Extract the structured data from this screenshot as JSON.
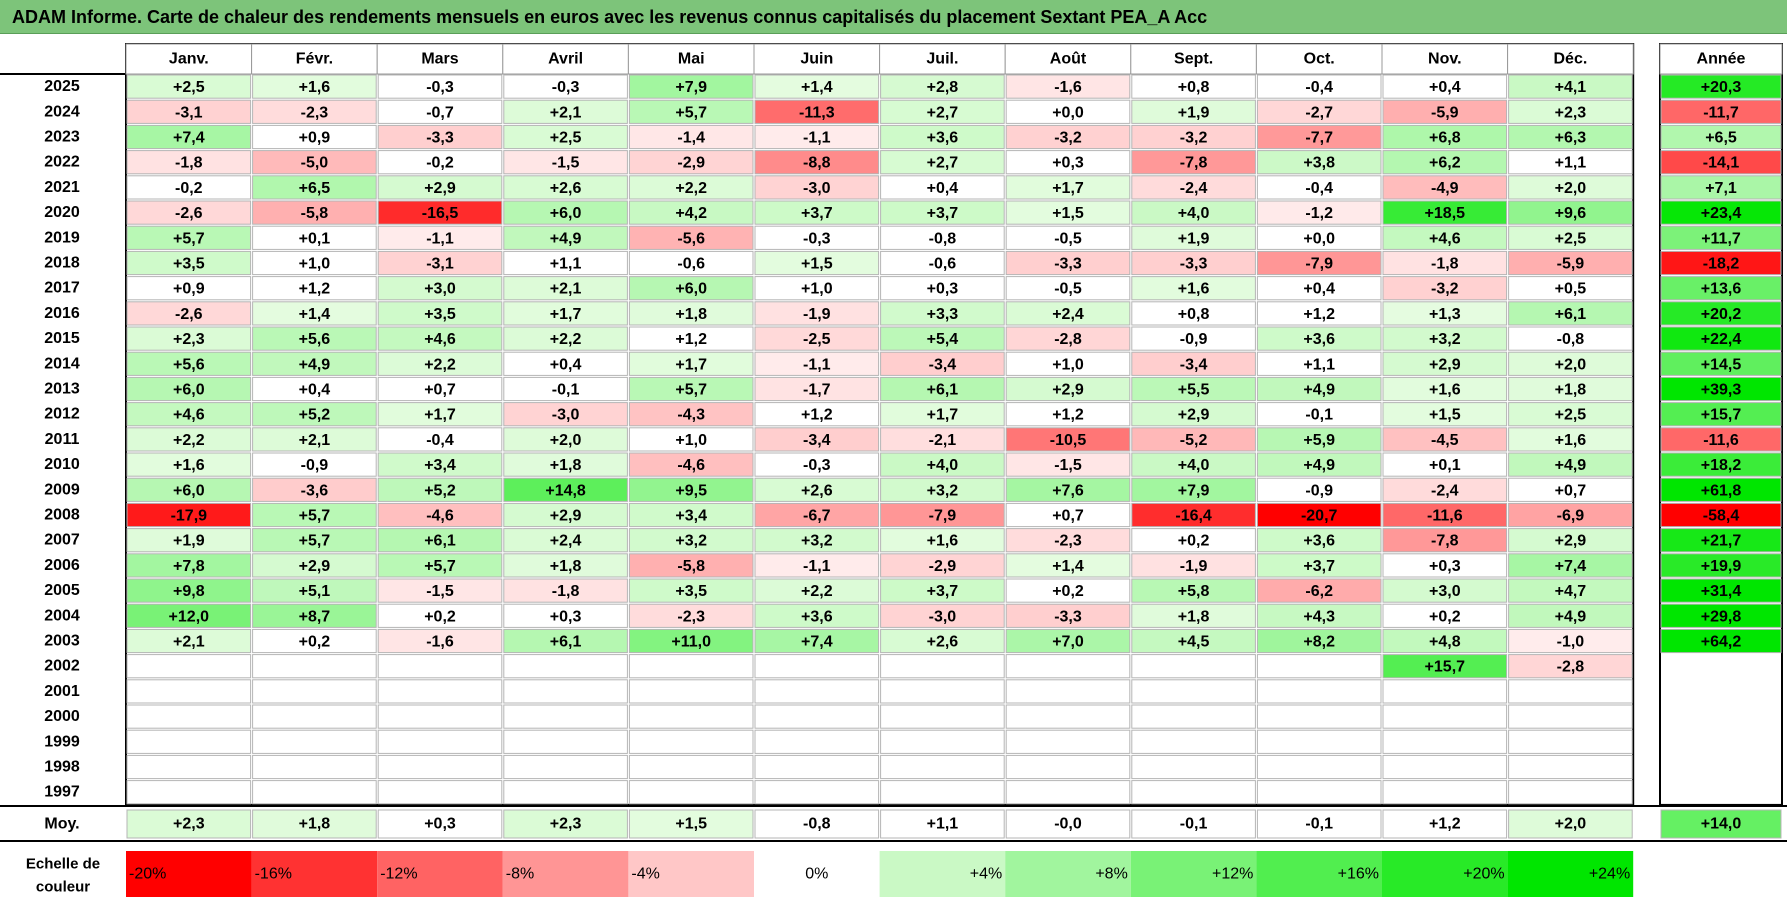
{
  "title": "ADAM Informe. Carte de chaleur des rendements mensuels en euros avec les revenus connus capitalisés du placement Sextant PEA_A Acc",
  "colors": {
    "title_bg": "#7dc47a",
    "negative_max": "#ff0000",
    "positive_max": "#00e600",
    "neutral": "#ffffff"
  },
  "chart_data": {
    "type": "heatmap",
    "title": "ADAM Informe. Carte de chaleur des rendements mensuels en euros avec les revenus connus capitalisés du placement Sextant PEA_A Acc",
    "months": [
      "Janv.",
      "Févr.",
      "Mars",
      "Avril",
      "Mai",
      "Juin",
      "Juil.",
      "Août",
      "Sept.",
      "Oct.",
      "Nov.",
      "Déc."
    ],
    "year_header": "Année",
    "rows": [
      {
        "year": "2025",
        "values": [
          "+2,5",
          "+1,6",
          "-0,3",
          "-0,3",
          "+7,9",
          "+1,4",
          "+2,8",
          "-1,6",
          "+0,8",
          "-0,4",
          "+0,4",
          "+4,1"
        ],
        "annual": "+20,3"
      },
      {
        "year": "2024",
        "values": [
          "-3,1",
          "-2,3",
          "-0,7",
          "+2,1",
          "+5,7",
          "-11,3",
          "+2,7",
          "+0,0",
          "+1,9",
          "-2,7",
          "-5,9",
          "+2,3"
        ],
        "annual": "-11,7"
      },
      {
        "year": "2023",
        "values": [
          "+7,4",
          "+0,9",
          "-3,3",
          "+2,5",
          "-1,4",
          "-1,1",
          "+3,6",
          "-3,2",
          "-3,2",
          "-7,7",
          "+6,8",
          "+6,3"
        ],
        "annual": "+6,5"
      },
      {
        "year": "2022",
        "values": [
          "-1,8",
          "-5,0",
          "-0,2",
          "-1,5",
          "-2,9",
          "-8,8",
          "+2,7",
          "+0,3",
          "-7,8",
          "+3,8",
          "+6,2",
          "+1,1"
        ],
        "annual": "-14,1"
      },
      {
        "year": "2021",
        "values": [
          "-0,2",
          "+6,5",
          "+2,9",
          "+2,6",
          "+2,2",
          "-3,0",
          "+0,4",
          "+1,7",
          "-2,4",
          "-0,4",
          "-4,9",
          "+2,0"
        ],
        "annual": "+7,1"
      },
      {
        "year": "2020",
        "values": [
          "-2,6",
          "-5,8",
          "-16,5",
          "+6,0",
          "+4,2",
          "+3,7",
          "+3,7",
          "+1,5",
          "+4,0",
          "-1,2",
          "+18,5",
          "+9,6"
        ],
        "annual": "+23,4"
      },
      {
        "year": "2019",
        "values": [
          "+5,7",
          "+0,1",
          "-1,1",
          "+4,9",
          "-5,6",
          "-0,3",
          "-0,8",
          "-0,5",
          "+1,9",
          "+0,0",
          "+4,6",
          "+2,5"
        ],
        "annual": "+11,7"
      },
      {
        "year": "2018",
        "values": [
          "+3,5",
          "+1,0",
          "-3,1",
          "+1,1",
          "-0,6",
          "+1,5",
          "-0,6",
          "-3,3",
          "-3,3",
          "-7,9",
          "-1,8",
          "-5,9"
        ],
        "annual": "-18,2"
      },
      {
        "year": "2017",
        "values": [
          "+0,9",
          "+1,2",
          "+3,0",
          "+2,1",
          "+6,0",
          "+1,0",
          "+0,3",
          "-0,5",
          "+1,6",
          "+0,4",
          "-3,2",
          "+0,5"
        ],
        "annual": "+13,6"
      },
      {
        "year": "2016",
        "values": [
          "-2,6",
          "+1,4",
          "+3,5",
          "+1,7",
          "+1,8",
          "-1,9",
          "+3,3",
          "+2,4",
          "+0,8",
          "+1,2",
          "+1,3",
          "+6,1"
        ],
        "annual": "+20,2"
      },
      {
        "year": "2015",
        "values": [
          "+2,3",
          "+5,6",
          "+4,6",
          "+2,2",
          "+1,2",
          "-2,5",
          "+5,4",
          "-2,8",
          "-0,9",
          "+3,6",
          "+3,2",
          "-0,8"
        ],
        "annual": "+22,4"
      },
      {
        "year": "2014",
        "values": [
          "+5,6",
          "+4,9",
          "+2,2",
          "+0,4",
          "+1,7",
          "-1,1",
          "-3,4",
          "+1,0",
          "-3,4",
          "+1,1",
          "+2,9",
          "+2,0"
        ],
        "annual": "+14,5"
      },
      {
        "year": "2013",
        "values": [
          "+6,0",
          "+0,4",
          "+0,7",
          "-0,1",
          "+5,7",
          "-1,7",
          "+6,1",
          "+2,9",
          "+5,5",
          "+4,9",
          "+1,6",
          "+1,8"
        ],
        "annual": "+39,3"
      },
      {
        "year": "2012",
        "values": [
          "+4,6",
          "+5,2",
          "+1,7",
          "-3,0",
          "-4,3",
          "+1,2",
          "+1,7",
          "+1,2",
          "+2,9",
          "-0,1",
          "+1,5",
          "+2,5"
        ],
        "annual": "+15,7"
      },
      {
        "year": "2011",
        "values": [
          "+2,2",
          "+2,1",
          "-0,4",
          "+2,0",
          "+1,0",
          "-3,4",
          "-2,1",
          "-10,5",
          "-5,2",
          "+5,9",
          "-4,5",
          "+1,6"
        ],
        "annual": "-11,6"
      },
      {
        "year": "2010",
        "values": [
          "+1,6",
          "-0,9",
          "+3,4",
          "+1,8",
          "-4,6",
          "-0,3",
          "+4,0",
          "-1,5",
          "+4,0",
          "+4,9",
          "+0,1",
          "+4,9"
        ],
        "annual": "+18,2"
      },
      {
        "year": "2009",
        "values": [
          "+6,0",
          "-3,6",
          "+5,2",
          "+14,8",
          "+9,5",
          "+2,6",
          "+3,2",
          "+7,6",
          "+7,9",
          "-0,9",
          "-2,4",
          "+0,7"
        ],
        "annual": "+61,8"
      },
      {
        "year": "2008",
        "values": [
          "-17,9",
          "+5,7",
          "-4,6",
          "+2,9",
          "+3,4",
          "-6,7",
          "-7,9",
          "+0,7",
          "-16,4",
          "-20,7",
          "-11,6",
          "-6,9"
        ],
        "annual": "-58,4"
      },
      {
        "year": "2007",
        "values": [
          "+1,9",
          "+5,7",
          "+6,1",
          "+2,4",
          "+3,2",
          "+3,2",
          "+1,6",
          "-2,3",
          "+0,2",
          "+3,6",
          "-7,8",
          "+2,9"
        ],
        "annual": "+21,7"
      },
      {
        "year": "2006",
        "values": [
          "+7,8",
          "+2,9",
          "+5,7",
          "+1,8",
          "-5,8",
          "-1,1",
          "-2,9",
          "+1,4",
          "-1,9",
          "+3,7",
          "+0,3",
          "+7,4"
        ],
        "annual": "+19,9"
      },
      {
        "year": "2005",
        "values": [
          "+9,8",
          "+5,1",
          "-1,5",
          "-1,8",
          "+3,5",
          "+2,2",
          "+3,7",
          "+0,2",
          "+5,8",
          "-6,2",
          "+3,0",
          "+4,7"
        ],
        "annual": "+31,4"
      },
      {
        "year": "2004",
        "values": [
          "+12,0",
          "+8,7",
          "+0,2",
          "+0,3",
          "-2,3",
          "+3,6",
          "-3,0",
          "-3,3",
          "+1,8",
          "+4,3",
          "+0,2",
          "+4,9"
        ],
        "annual": "+29,8"
      },
      {
        "year": "2003",
        "values": [
          "+2,1",
          "+0,2",
          "-1,6",
          "+6,1",
          "+11,0",
          "+7,4",
          "+2,6",
          "+7,0",
          "+4,5",
          "+8,2",
          "+4,8",
          "-1,0"
        ],
        "annual": "+64,2"
      },
      {
        "year": "2002",
        "values": [
          "",
          "",
          "",
          "",
          "",
          "",
          "",
          "",
          "",
          "",
          "+15,7",
          "-2,8"
        ],
        "annual": ""
      },
      {
        "year": "2001",
        "values": [
          "",
          "",
          "",
          "",
          "",
          "",
          "",
          "",
          "",
          "",
          "",
          ""
        ],
        "annual": ""
      },
      {
        "year": "2000",
        "values": [
          "",
          "",
          "",
          "",
          "",
          "",
          "",
          "",
          "",
          "",
          "",
          ""
        ],
        "annual": ""
      },
      {
        "year": "1999",
        "values": [
          "",
          "",
          "",
          "",
          "",
          "",
          "",
          "",
          "",
          "",
          "",
          ""
        ],
        "annual": ""
      },
      {
        "year": "1998",
        "values": [
          "",
          "",
          "",
          "",
          "",
          "",
          "",
          "",
          "",
          "",
          "",
          ""
        ],
        "annual": ""
      },
      {
        "year": "1997",
        "values": [
          "",
          "",
          "",
          "",
          "",
          "",
          "",
          "",
          "",
          "",
          "",
          ""
        ],
        "annual": ""
      }
    ],
    "average": {
      "label": "Moy.",
      "values": [
        "+2,3",
        "+1,8",
        "+0,3",
        "+2,3",
        "+1,5",
        "-0,8",
        "+1,1",
        "-0,0",
        "-0,1",
        "-0,1",
        "+1,2",
        "+2,0"
      ],
      "annual": "+14,0"
    },
    "scale": {
      "label_line1": "Echelle de",
      "label_line2": "couleur",
      "stops": [
        {
          "label": "-20%",
          "value": -20
        },
        {
          "label": "-16%",
          "value": -16
        },
        {
          "label": "-12%",
          "value": -12
        },
        {
          "label": "-8%",
          "value": -8
        },
        {
          "label": "-4%",
          "value": -4
        },
        {
          "label": "0%",
          "value": 0
        },
        {
          "label": "+4%",
          "value": 4
        },
        {
          "label": "+8%",
          "value": 8
        },
        {
          "label": "+12%",
          "value": 12
        },
        {
          "label": "+16%",
          "value": 16
        },
        {
          "label": "+20%",
          "value": 20
        },
        {
          "label": "+24%",
          "value": 24
        }
      ]
    }
  }
}
